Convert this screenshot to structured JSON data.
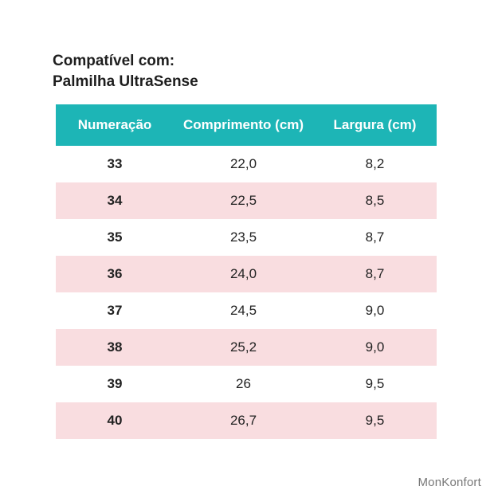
{
  "header": {
    "title_line1": "Compatível com:",
    "title_line2": "Palmilha UltraSense"
  },
  "table": {
    "columns": [
      "Numeração",
      "Comprimento (cm)",
      "Largura (cm)"
    ],
    "rows": [
      [
        "33",
        "22,0",
        "8,2"
      ],
      [
        "34",
        "22,5",
        "8,5"
      ],
      [
        "35",
        "23,5",
        "8,7"
      ],
      [
        "36",
        "24,0",
        "8,7"
      ],
      [
        "37",
        "24,5",
        "9,0"
      ],
      [
        "38",
        "25,2",
        "9,0"
      ],
      [
        "39",
        "26",
        "9,5"
      ],
      [
        "40",
        "26,7",
        "9,5"
      ]
    ]
  },
  "footer": {
    "brand": "MonKonfort"
  }
}
